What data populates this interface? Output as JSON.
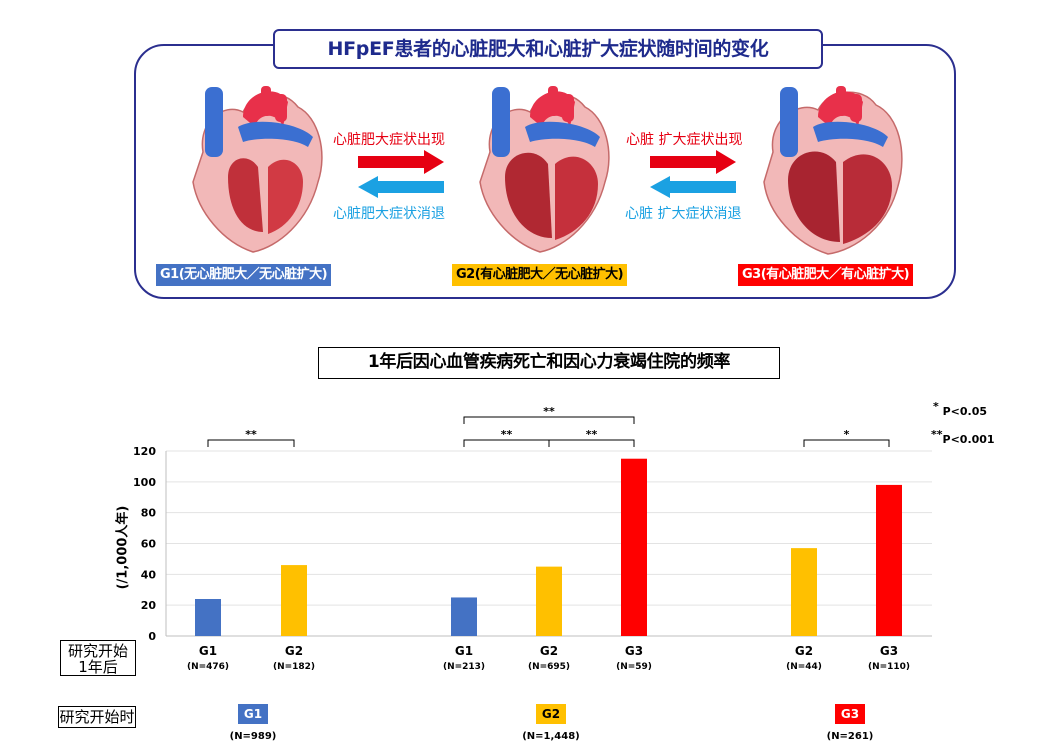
{
  "panel": {
    "title": "HFpEF患者的心脏肥大和心脏扩大症状随时间的变化",
    "arrow1_up": "心脏肥大症状出现",
    "arrow1_down": "心脏肥大症状消退",
    "arrow2_up": "心脏 扩大症状出现",
    "arrow2_down": "心脏 扩大症状消退",
    "groups": [
      {
        "label": "G1(无心脏肥大／无心脏扩大)",
        "color": "#4472c4",
        "text_color": "#ffffff"
      },
      {
        "label": "G2(有心脏肥大／无心脏扩大)",
        "color": "#ffc000",
        "text_color": "#000000"
      },
      {
        "label": "G3(有心脏肥大／有心脏扩大)",
        "color": "#ff0000",
        "text_color": "#ffffff"
      }
    ]
  },
  "row_labels": {
    "after": "研究开始\n1年后",
    "start": "研究开始时"
  },
  "legend": {
    "single": "P<0.05",
    "double": "P<0.001"
  },
  "start_groups": [
    {
      "label": "G1",
      "n": "(N=989)",
      "color": "#4472c4",
      "text_color": "#ffffff"
    },
    {
      "label": "G2",
      "n": "(N=1,448)",
      "color": "#ffc000",
      "text_color": "#000000"
    },
    {
      "label": "G3",
      "n": "(N=261)",
      "color": "#ff0000",
      "text_color": "#ffffff"
    }
  ],
  "chart_data": {
    "type": "bar",
    "title": "1年后因心血管疾病死亡和因心力衰竭住院的频率",
    "ylabel": "(/1,000人年)",
    "ylim": [
      0,
      120
    ],
    "yticks": [
      0,
      20,
      40,
      60,
      80,
      100,
      120
    ],
    "grid": true,
    "colors": {
      "G1": "#4472c4",
      "G2": "#ffc000",
      "G3": "#ff0000"
    },
    "panels": [
      {
        "bars": [
          {
            "category": "G1",
            "n": "(N=476)",
            "value": 24
          },
          {
            "category": "G2",
            "n": "(N=182)",
            "value": 46
          }
        ],
        "brackets": [
          {
            "from": 0,
            "to": 1,
            "label": "**",
            "level": 0
          }
        ]
      },
      {
        "bars": [
          {
            "category": "G1",
            "n": "(N=213)",
            "value": 25
          },
          {
            "category": "G2",
            "n": "(N=695)",
            "value": 45
          },
          {
            "category": "G3",
            "n": "(N=59)",
            "value": 115
          }
        ],
        "brackets": [
          {
            "from": 0,
            "to": 1,
            "label": "**",
            "level": 0
          },
          {
            "from": 1,
            "to": 2,
            "label": "**",
            "level": 0
          },
          {
            "from": 0,
            "to": 2,
            "label": "**",
            "level": 1
          }
        ]
      },
      {
        "bars": [
          {
            "category": "G2",
            "n": "(N=44)",
            "value": 57
          },
          {
            "category": "G3",
            "n": "(N=110)",
            "value": 98
          }
        ],
        "brackets": [
          {
            "from": 0,
            "to": 1,
            "label": "*",
            "level": 0
          }
        ]
      }
    ]
  }
}
